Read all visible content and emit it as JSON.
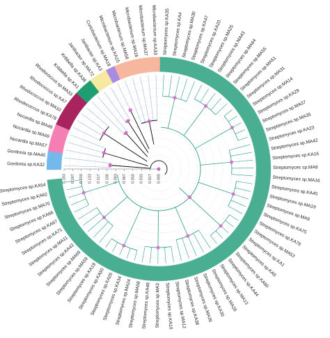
{
  "clades": [
    {
      "color": "#74b9ec",
      "leaves": [
        "Gordonia sp.KA32",
        "Gordonia sp.MA40"
      ]
    },
    {
      "color": "#f47fb4",
      "leaves": [
        "Nocardia sp.MA57",
        "Nocardia sp.MA69",
        "Nocardia sp.MA48"
      ]
    },
    {
      "color": "#a8245f",
      "leaves": [
        "Rhodococcus sp.KA78",
        "Rhodococcus sp.MA10",
        "Rhodococcus sp.KA7",
        "Rhodococcus sp.MA33"
      ]
    },
    {
      "color": "#1f9e74",
      "leaves": [
        "Kribbella sp.KA1",
        "Kribbella sp.KA36"
      ]
    },
    {
      "color": "#f6eaa0",
      "leaves": [
        "Janibacter sp.MA72",
        "Janibacter sp.KA3"
      ]
    },
    {
      "color": "#a88be2",
      "leaves": [
        "Curtobacterium sp.MA18"
      ]
    },
    {
      "color": "#f7b69e",
      "leaves": [
        "Microbacterium sp.KA15",
        "Microbacterium sp.MA56",
        "Microbacterium sp.MA16",
        "Microbacterium sp.MA37",
        "Microbacterium sp.KA33"
      ]
    },
    {
      "color": "#4aae92",
      "leaves": [
        "Streptomyces sp.KA35",
        "Streptomyces sp.KA4",
        "Streptomyces sp.MA30",
        "Streptomyces sp.KA47",
        "Streptomyces sp.KA20",
        "Streptomyces sp.MA25",
        "Streptomyces sp.MA43",
        "Streptomyces sp.MA64",
        "Streptomyces sp.MA55",
        "Streptomyces sp.MA51",
        "Streptomyces sp.MA31",
        "Streptomyces sp.MA14",
        "Streptomyces sp.KA29",
        "Streptomyces sp.MA37",
        "Streptomyces sp.MA35",
        "Streptomyces sp.KA23",
        "Streptomyces sp.MA42",
        "Streptomyces sp.KA16",
        "Streptomyces sp.MA8",
        "Streptomyces sp.MA16",
        "Streptomyces sp.KA45",
        "Streptomyces sp.MA19",
        "Streptomyces sp.MA9",
        "Streptomyces sp.KA75",
        "Streptomyces sp.KA76",
        "Streptomyces sp.MA53",
        "Streptomyces sp.KA1",
        "Streptomyces sp.KA5",
        "Streptomyces sp.KA60",
        "Streptomyces sp.KA44",
        "Streptomyces sp.MA13",
        "Streptomyces sp.MA28",
        "Streptomyces sp.KA30",
        "Streptomyces sp.MA39",
        "Streptomyces sp.KA38",
        "Streptomyces sp.MA12",
        "Streptomyces sp.KA10",
        "Streptomyces sp.MA3",
        "Streptomyces sp.KA48",
        "Streptomyces sp.MA58",
        "Streptomyces sp.MA24",
        "Streptomyces sp.KA34",
        "Streptomyces sp.KA26",
        "Streptomyces sp.KA50",
        "Streptomyces sp.KA19",
        "Streptomyces sp.MA59",
        "Streptomyces sp.MA69",
        "Streptomyces sp.KA43",
        "Streptomyces sp.MA11",
        "Streptomyces sp.KA71",
        "Streptomyces sp.KA67",
        "Streptomyces sp.KA68",
        "Streptomyces sp.MA70",
        "Streptomyces sp.KA62",
        "Streptomyces sp.KA54"
      ]
    }
  ],
  "scale": [
    "0.183",
    "0.167",
    "0.150",
    "0.133",
    "0.117",
    "0.100",
    "0.083",
    "0.067",
    "0.050",
    "0.033",
    "0.017",
    "0.000"
  ]
}
